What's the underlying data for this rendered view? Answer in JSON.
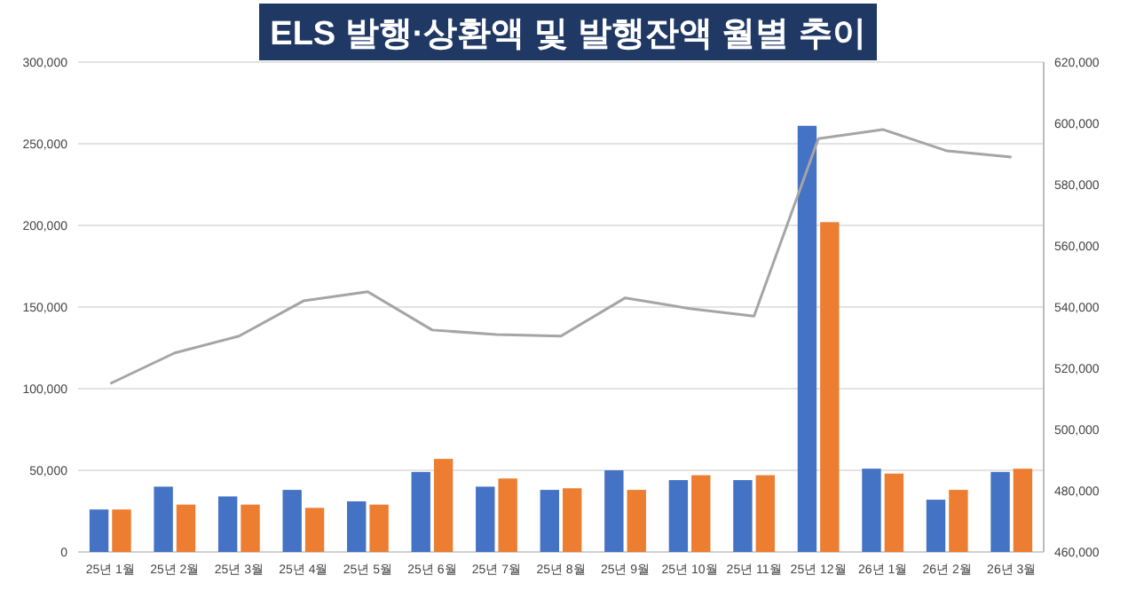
{
  "chart_data": {
    "type": "bar",
    "title": "ELS 발행·상환액 및 발행잔액 월별 추이",
    "categories": [
      "25년 1월",
      "25년 2월",
      "25년 3월",
      "25년 4월",
      "25년 5월",
      "25년 6월",
      "25년 7월",
      "25년 8월",
      "25년 9월",
      "25년 10월",
      "25년 11월",
      "25년 12월",
      "26년 1월",
      "26년 2월",
      "26년 3월"
    ],
    "series": [
      {
        "color": "#4472c4",
        "values": [
          26000,
          40000,
          34000,
          38000,
          31000,
          49000,
          40000,
          38000,
          50000,
          44000,
          44000,
          261000,
          51000,
          32000,
          49000
        ]
      },
      {
        "color": "#ed7d31",
        "values": [
          26000,
          29000,
          29000,
          27000,
          29000,
          57000,
          45000,
          39000,
          38000,
          47000,
          47000,
          202000,
          48000,
          38000,
          51000
        ]
      },
      {
        "type": "line",
        "axis": "y2",
        "color": "#a5a5a5",
        "values": [
          515000,
          525000,
          530500,
          542000,
          545000,
          532500,
          531000,
          530500,
          543000,
          539500,
          537000,
          595000,
          598000,
          591000,
          589000
        ]
      }
    ],
    "ylim": [
      0,
      300000
    ],
    "yticks": [
      {
        "value": 0,
        "label": "0"
      },
      {
        "value": 50000,
        "label": "50,000"
      },
      {
        "value": 100000,
        "label": "100,000"
      },
      {
        "value": 150000,
        "label": "150,000"
      },
      {
        "value": 200000,
        "label": "200,000"
      },
      {
        "value": 250000,
        "label": "250,000"
      },
      {
        "value": 300000,
        "label": "300,000"
      }
    ],
    "y2lim": [
      460000,
      620000
    ],
    "y2ticks": [
      {
        "value": 460000,
        "label": "460,000"
      },
      {
        "value": 480000,
        "label": "480,000"
      },
      {
        "value": 500000,
        "label": "500,000"
      },
      {
        "value": 520000,
        "label": "520,000"
      },
      {
        "value": 540000,
        "label": "540,000"
      },
      {
        "value": 560000,
        "label": "560,000"
      },
      {
        "value": 580000,
        "label": "580,000"
      },
      {
        "value": 600000,
        "label": "600,000"
      },
      {
        "value": 620000,
        "label": "620,000"
      }
    ],
    "grid": "y",
    "marker": "none",
    "line_style": "solid"
  }
}
